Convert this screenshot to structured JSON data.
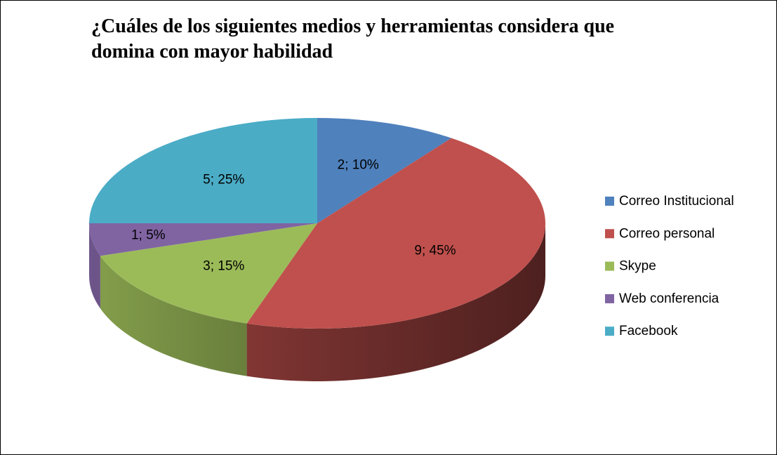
{
  "chart_data": {
    "type": "pie3d",
    "title": [
      "¿Cuáles de los siguientes medios y herramientas considera que",
      "domina con mayor habilidad"
    ],
    "categories": [
      "Correo Institucional",
      "Correo personal",
      "Skype",
      "Web conferencia",
      "Facebook"
    ],
    "values": [
      2,
      9,
      3,
      1,
      5
    ],
    "value_labels": [
      "2; 10%",
      "9; 45%",
      "3; 15%",
      "1; 5%",
      "5; 25%"
    ],
    "colors": [
      "#4f81bd",
      "#c0504d",
      "#9bbb59",
      "#8064a2",
      "#4bacc6"
    ],
    "legend": "right"
  }
}
